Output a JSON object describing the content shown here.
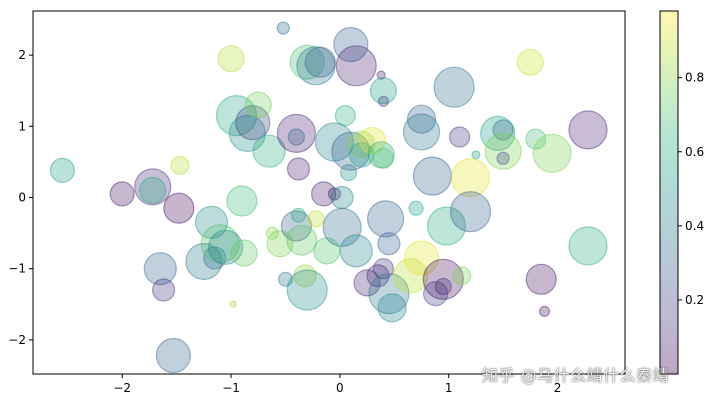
{
  "chart_data": {
    "type": "scatter",
    "title": "",
    "xlabel": "",
    "ylabel": "",
    "xlim": [
      -2.82,
      2.62
    ],
    "ylim": [
      -2.48,
      2.62
    ],
    "xticks": [
      -2,
      -1,
      0,
      1,
      2
    ],
    "yticks": [
      -2,
      -1,
      0,
      1,
      2
    ],
    "alpha": 0.3,
    "colormap": "viridis",
    "colorbar": {
      "min": 0.0,
      "max": 0.98,
      "ticks": [
        0.2,
        0.4,
        0.6,
        0.8
      ]
    },
    "colormap_stops": [
      "#440154",
      "#482878",
      "#3e4989",
      "#31688e",
      "#26828e",
      "#1f9e89",
      "#35b779",
      "#6ece58",
      "#b5de2b",
      "#fde725"
    ],
    "points": [
      [
        -2.55,
        0.38,
        0.55,
        12
      ],
      [
        -2.0,
        0.05,
        0.05,
        12
      ],
      [
        -1.72,
        0.15,
        0.12,
        18
      ],
      [
        -1.72,
        0.1,
        0.6,
        13
      ],
      [
        -1.47,
        0.45,
        0.88,
        9
      ],
      [
        -1.48,
        -0.15,
        0.02,
        15
      ],
      [
        -1.65,
        -1.0,
        0.3,
        16
      ],
      [
        -1.62,
        -1.3,
        0.15,
        11
      ],
      [
        -1.53,
        -2.22,
        0.3,
        17
      ],
      [
        -1.25,
        -0.9,
        0.4,
        18
      ],
      [
        -1.18,
        -0.35,
        0.5,
        16
      ],
      [
        -1.15,
        -0.85,
        0.35,
        11
      ],
      [
        -1.1,
        -0.65,
        0.72,
        19
      ],
      [
        -1.05,
        -0.7,
        0.45,
        17
      ],
      [
        -1.0,
        1.95,
        0.88,
        13
      ],
      [
        -0.98,
        -1.5,
        0.85,
        3
      ],
      [
        -0.95,
        1.15,
        0.58,
        20
      ],
      [
        -0.9,
        -0.05,
        0.68,
        15
      ],
      [
        -0.88,
        -0.78,
        0.75,
        13
      ],
      [
        -0.85,
        0.9,
        0.48,
        18
      ],
      [
        -0.8,
        1.05,
        0.22,
        17
      ],
      [
        -0.75,
        1.3,
        0.78,
        13
      ],
      [
        -0.65,
        0.65,
        0.62,
        16
      ],
      [
        -0.62,
        -0.5,
        0.82,
        6
      ],
      [
        -0.55,
        -0.65,
        0.8,
        13
      ],
      [
        -0.52,
        2.38,
        0.35,
        6
      ],
      [
        -0.5,
        -1.15,
        0.4,
        7
      ],
      [
        -0.4,
        0.9,
        0.1,
        19
      ],
      [
        -0.4,
        0.85,
        0.3,
        8
      ],
      [
        -0.4,
        -0.4,
        0.3,
        15
      ],
      [
        -0.38,
        0.4,
        0.1,
        11
      ],
      [
        -0.38,
        -0.25,
        0.6,
        7
      ],
      [
        -0.35,
        -0.6,
        0.75,
        15
      ],
      [
        -0.3,
        1.9,
        0.7,
        17
      ],
      [
        -0.32,
        -1.1,
        0.85,
        11
      ],
      [
        -0.3,
        -1.3,
        0.5,
        20
      ],
      [
        -0.22,
        -0.3,
        0.9,
        8
      ],
      [
        -0.22,
        1.85,
        0.4,
        19
      ],
      [
        -0.18,
        1.9,
        0.3,
        15
      ],
      [
        -0.15,
        0.05,
        0.1,
        12
      ],
      [
        -0.12,
        -0.75,
        0.72,
        13
      ],
      [
        -0.05,
        0.78,
        0.45,
        19
      ],
      [
        -0.05,
        0.05,
        0.05,
        6
      ],
      [
        0.02,
        0.0,
        0.45,
        11
      ],
      [
        0.02,
        -0.42,
        0.35,
        19
      ],
      [
        0.05,
        1.15,
        0.62,
        10
      ],
      [
        0.08,
        0.35,
        0.5,
        8
      ],
      [
        0.1,
        0.65,
        0.3,
        19
      ],
      [
        0.1,
        2.15,
        0.3,
        17
      ],
      [
        0.15,
        1.85,
        0.1,
        20
      ],
      [
        0.15,
        -0.75,
        0.45,
        16
      ],
      [
        0.2,
        0.75,
        0.82,
        13
      ],
      [
        0.2,
        0.6,
        0.55,
        12
      ],
      [
        0.25,
        -1.2,
        0.1,
        13
      ],
      [
        0.3,
        0.8,
        0.95,
        13
      ],
      [
        0.35,
        -1.1,
        0.12,
        11
      ],
      [
        0.38,
        0.6,
        0.62,
        13
      ],
      [
        0.38,
        1.72,
        0.1,
        4
      ],
      [
        0.4,
        0.55,
        0.72,
        10
      ],
      [
        0.4,
        -1.0,
        0.15,
        10
      ],
      [
        0.4,
        1.5,
        0.55,
        13
      ],
      [
        0.4,
        1.35,
        0.2,
        5
      ],
      [
        0.42,
        -0.3,
        0.3,
        18
      ],
      [
        0.45,
        -0.65,
        0.3,
        11
      ],
      [
        0.45,
        -1.35,
        0.4,
        20
      ],
      [
        0.48,
        -1.55,
        0.45,
        14
      ],
      [
        0.65,
        -1.1,
        0.9,
        17
      ],
      [
        0.7,
        -0.15,
        0.55,
        7
      ],
      [
        0.75,
        1.1,
        0.32,
        14
      ],
      [
        0.75,
        0.92,
        0.4,
        18
      ],
      [
        0.75,
        -0.85,
        0.95,
        17
      ],
      [
        0.85,
        0.3,
        0.3,
        19
      ],
      [
        0.88,
        -1.35,
        0.2,
        12
      ],
      [
        0.95,
        -1.25,
        0.15,
        8
      ],
      [
        0.95,
        -1.15,
        0.05,
        20
      ],
      [
        0.98,
        -0.4,
        0.6,
        19
      ],
      [
        1.05,
        1.55,
        0.35,
        20
      ],
      [
        1.1,
        0.85,
        0.15,
        10
      ],
      [
        1.12,
        -1.1,
        0.8,
        9
      ],
      [
        1.2,
        0.28,
        0.95,
        19
      ],
      [
        1.2,
        -0.2,
        0.3,
        20
      ],
      [
        1.25,
        0.6,
        0.55,
        4
      ],
      [
        1.45,
        0.9,
        0.55,
        17
      ],
      [
        1.5,
        0.95,
        0.35,
        10
      ],
      [
        1.5,
        0.65,
        0.8,
        18
      ],
      [
        1.5,
        0.55,
        0.25,
        6
      ],
      [
        1.75,
        1.9,
        0.92,
        13
      ],
      [
        1.8,
        0.82,
        0.7,
        10
      ],
      [
        1.95,
        0.62,
        0.8,
        19
      ],
      [
        1.85,
        -1.15,
        0.05,
        15
      ],
      [
        1.88,
        -1.6,
        0.05,
        5
      ],
      [
        2.28,
        0.95,
        0.1,
        19
      ],
      [
        2.28,
        -0.68,
        0.6,
        19
      ]
    ]
  },
  "watermark": "知乎 @马什么靖什么秦靖"
}
